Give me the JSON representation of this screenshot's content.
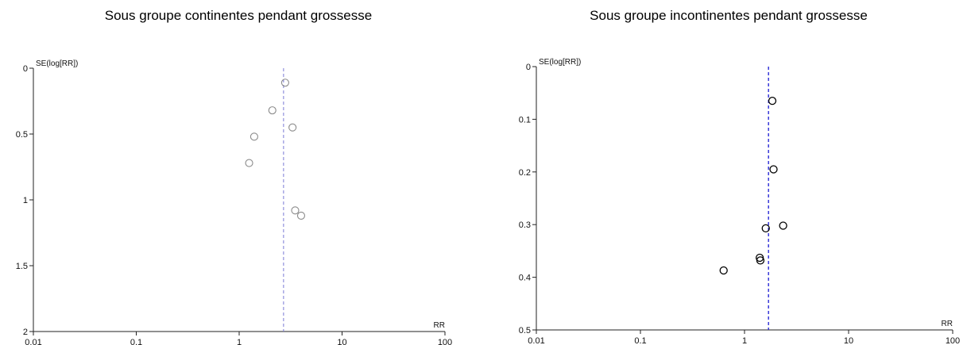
{
  "charts": [
    {
      "chart_data": {
        "type": "scatter",
        "title": "Sous groupe continentes pendant grossesse",
        "xlabel": "RR",
        "ylabel": "SE(log[RR])",
        "x_scale": "log",
        "xlim": [
          0.01,
          100
        ],
        "ylim": [
          0,
          2
        ],
        "y_inverted": true,
        "x_ticks": [
          "0.01",
          "0.1",
          "1",
          "10",
          "100"
        ],
        "y_ticks": [
          "0",
          "0.5",
          "1",
          "1.5",
          "2"
        ],
        "y_tick_values": [
          0,
          0.5,
          1,
          1.5,
          2
        ],
        "reference_line_x": 2.7,
        "points": [
          {
            "x": 2.8,
            "y": 0.11
          },
          {
            "x": 2.1,
            "y": 0.32
          },
          {
            "x": 3.3,
            "y": 0.45
          },
          {
            "x": 1.4,
            "y": 0.52
          },
          {
            "x": 1.25,
            "y": 0.72
          },
          {
            "x": 3.5,
            "y": 1.08
          },
          {
            "x": 4.0,
            "y": 1.12
          }
        ],
        "marker_color": "#8a8a8a",
        "line_color": "#7b7bd6",
        "grid": false
      }
    },
    {
      "chart_data": {
        "type": "scatter",
        "title": "Sous groupe incontinentes pendant grossesse",
        "xlabel": "RR",
        "ylabel": "SE(log[RR])",
        "x_scale": "log",
        "xlim": [
          0.01,
          100
        ],
        "ylim": [
          0,
          0.5
        ],
        "y_inverted": true,
        "x_ticks": [
          "0.01",
          "0.1",
          "1",
          "10",
          "100"
        ],
        "y_ticks": [
          "0",
          "0.1",
          "0.2",
          "0.3",
          "0.4",
          "0.5"
        ],
        "y_tick_values": [
          0,
          0.1,
          0.2,
          0.3,
          0.4,
          0.5
        ],
        "reference_line_x": 1.7,
        "points": [
          {
            "x": 1.85,
            "y": 0.065
          },
          {
            "x": 1.9,
            "y": 0.195
          },
          {
            "x": 2.35,
            "y": 0.302
          },
          {
            "x": 1.6,
            "y": 0.307
          },
          {
            "x": 1.4,
            "y": 0.363
          },
          {
            "x": 1.42,
            "y": 0.368
          },
          {
            "x": 0.63,
            "y": 0.387
          }
        ],
        "marker_color": "#000000",
        "line_color": "#2a2ad6",
        "grid": false
      }
    }
  ]
}
